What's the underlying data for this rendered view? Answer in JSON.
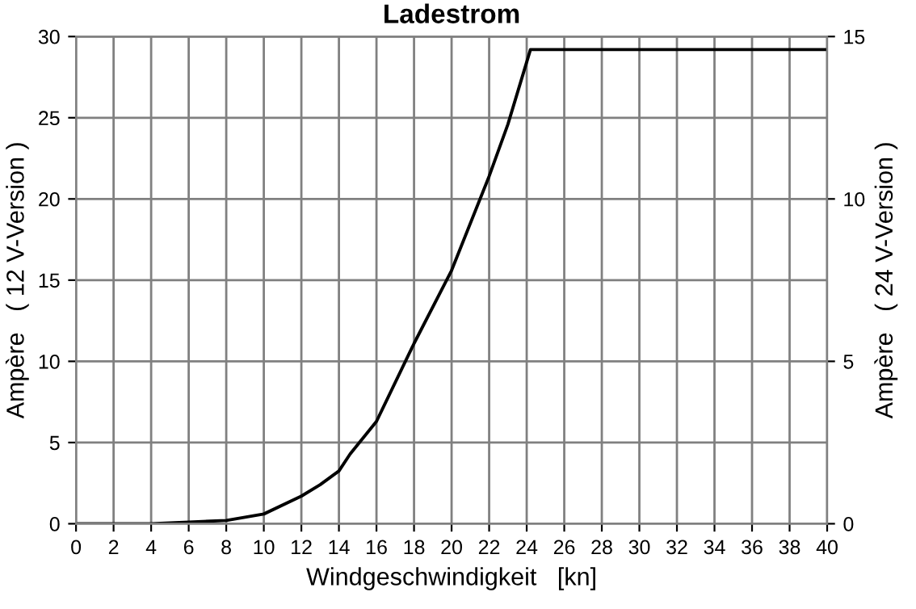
{
  "chart_data": {
    "type": "line",
    "title": "Ladestrom",
    "xlabel": "Windgeschwindigkeit   [kn]",
    "ylabel": "Ampère   ( 12 V-Version )",
    "y2label": "Ampère   ( 24 V-Version )",
    "x": [
      0,
      2,
      4,
      6,
      8,
      10,
      12,
      13,
      14,
      14.6,
      16,
      18,
      20,
      22,
      23,
      24.2,
      40
    ],
    "series": [
      {
        "color": "#000000",
        "values": [
          0,
          0,
          0,
          0.1,
          0.2,
          0.6,
          1.7,
          2.4,
          3.25,
          4.3,
          6.3,
          11.1,
          15.6,
          21.4,
          24.6,
          29.2,
          29.2
        ]
      }
    ],
    "xlim": [
      0,
      40
    ],
    "xticks": [
      0,
      2,
      4,
      6,
      8,
      10,
      12,
      14,
      16,
      18,
      20,
      22,
      24,
      26,
      28,
      30,
      32,
      34,
      36,
      38,
      40
    ],
    "ylim": [
      0,
      30
    ],
    "yticks": [
      0,
      5,
      10,
      15,
      20,
      25,
      30
    ],
    "y2lim": [
      0,
      15
    ],
    "y2ticks": [
      0,
      5,
      10,
      15
    ],
    "grid": true,
    "marker": "none",
    "line_style": "solid"
  }
}
